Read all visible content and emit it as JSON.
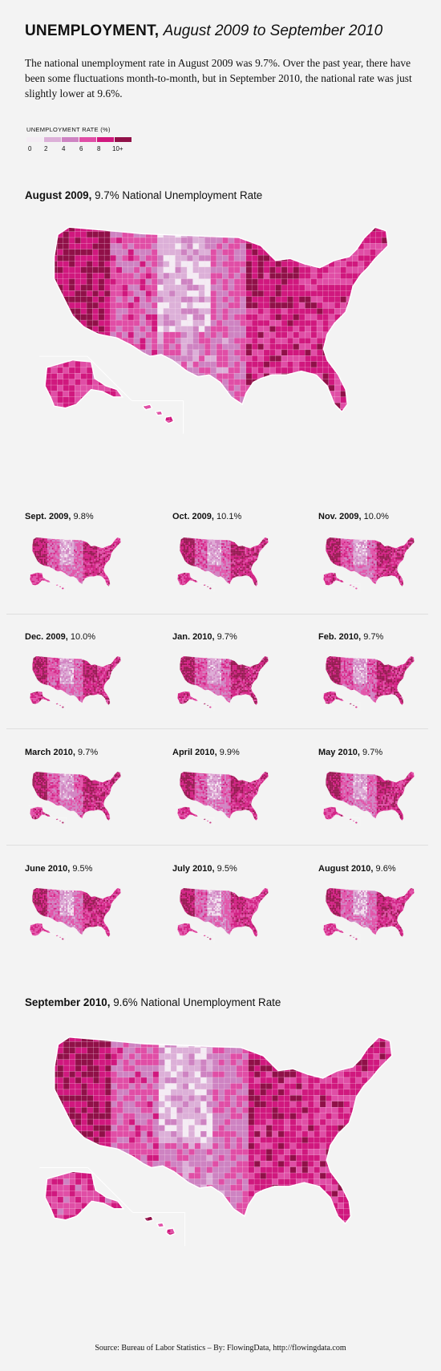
{
  "header": {
    "title_bold": "UNEMPLOYMENT,",
    "title_italic": "August 2009 to September 2010",
    "intro": "The national unemployment rate in August 2009 was 9.7%. Over the past year, there have been some fluctuations month-to-month, but in September 2010, the national rate was just slightly lower at 9.6%."
  },
  "legend": {
    "title": "UNEMPLOYMENT RATE (%)",
    "ticks": [
      "0",
      "2",
      "4",
      "6",
      "8",
      "10+"
    ],
    "colors": [
      "#f4ecf4",
      "#dcb0d8",
      "#ce83c2",
      "#e04ea6",
      "#d0187e",
      "#901048"
    ]
  },
  "top_map": {
    "label_bold": "August 2009,",
    "label_rest": "9.7% National Unemployment Rate"
  },
  "bottom_map": {
    "label_bold": "September 2010,",
    "label_rest": "9.6% National Unemployment Rate"
  },
  "panels": [
    {
      "label_bold": "Sept. 2009,",
      "label_rest": "9.8%"
    },
    {
      "label_bold": "Oct. 2009,",
      "label_rest": "10.1%"
    },
    {
      "label_bold": "Nov. 2009,",
      "label_rest": "10.0%"
    },
    {
      "label_bold": "Dec. 2009,",
      "label_rest": "10.0%"
    },
    {
      "label_bold": "Jan. 2010,",
      "label_rest": "9.7%"
    },
    {
      "label_bold": "Feb. 2010,",
      "label_rest": "9.7%"
    },
    {
      "label_bold": "March 2010,",
      "label_rest": "9.7%"
    },
    {
      "label_bold": "April 2010,",
      "label_rest": "9.9%"
    },
    {
      "label_bold": "May 2010,",
      "label_rest": "9.7%"
    },
    {
      "label_bold": "June 2010,",
      "label_rest": "9.5%"
    },
    {
      "label_bold": "July 2010,",
      "label_rest": "9.5%"
    },
    {
      "label_bold": "August 2010,",
      "label_rest": "9.6%"
    }
  ],
  "footer": {
    "source": "Source: Bureau of Labor Statistics – By: FlowingData, http://flowingdata.com"
  }
}
